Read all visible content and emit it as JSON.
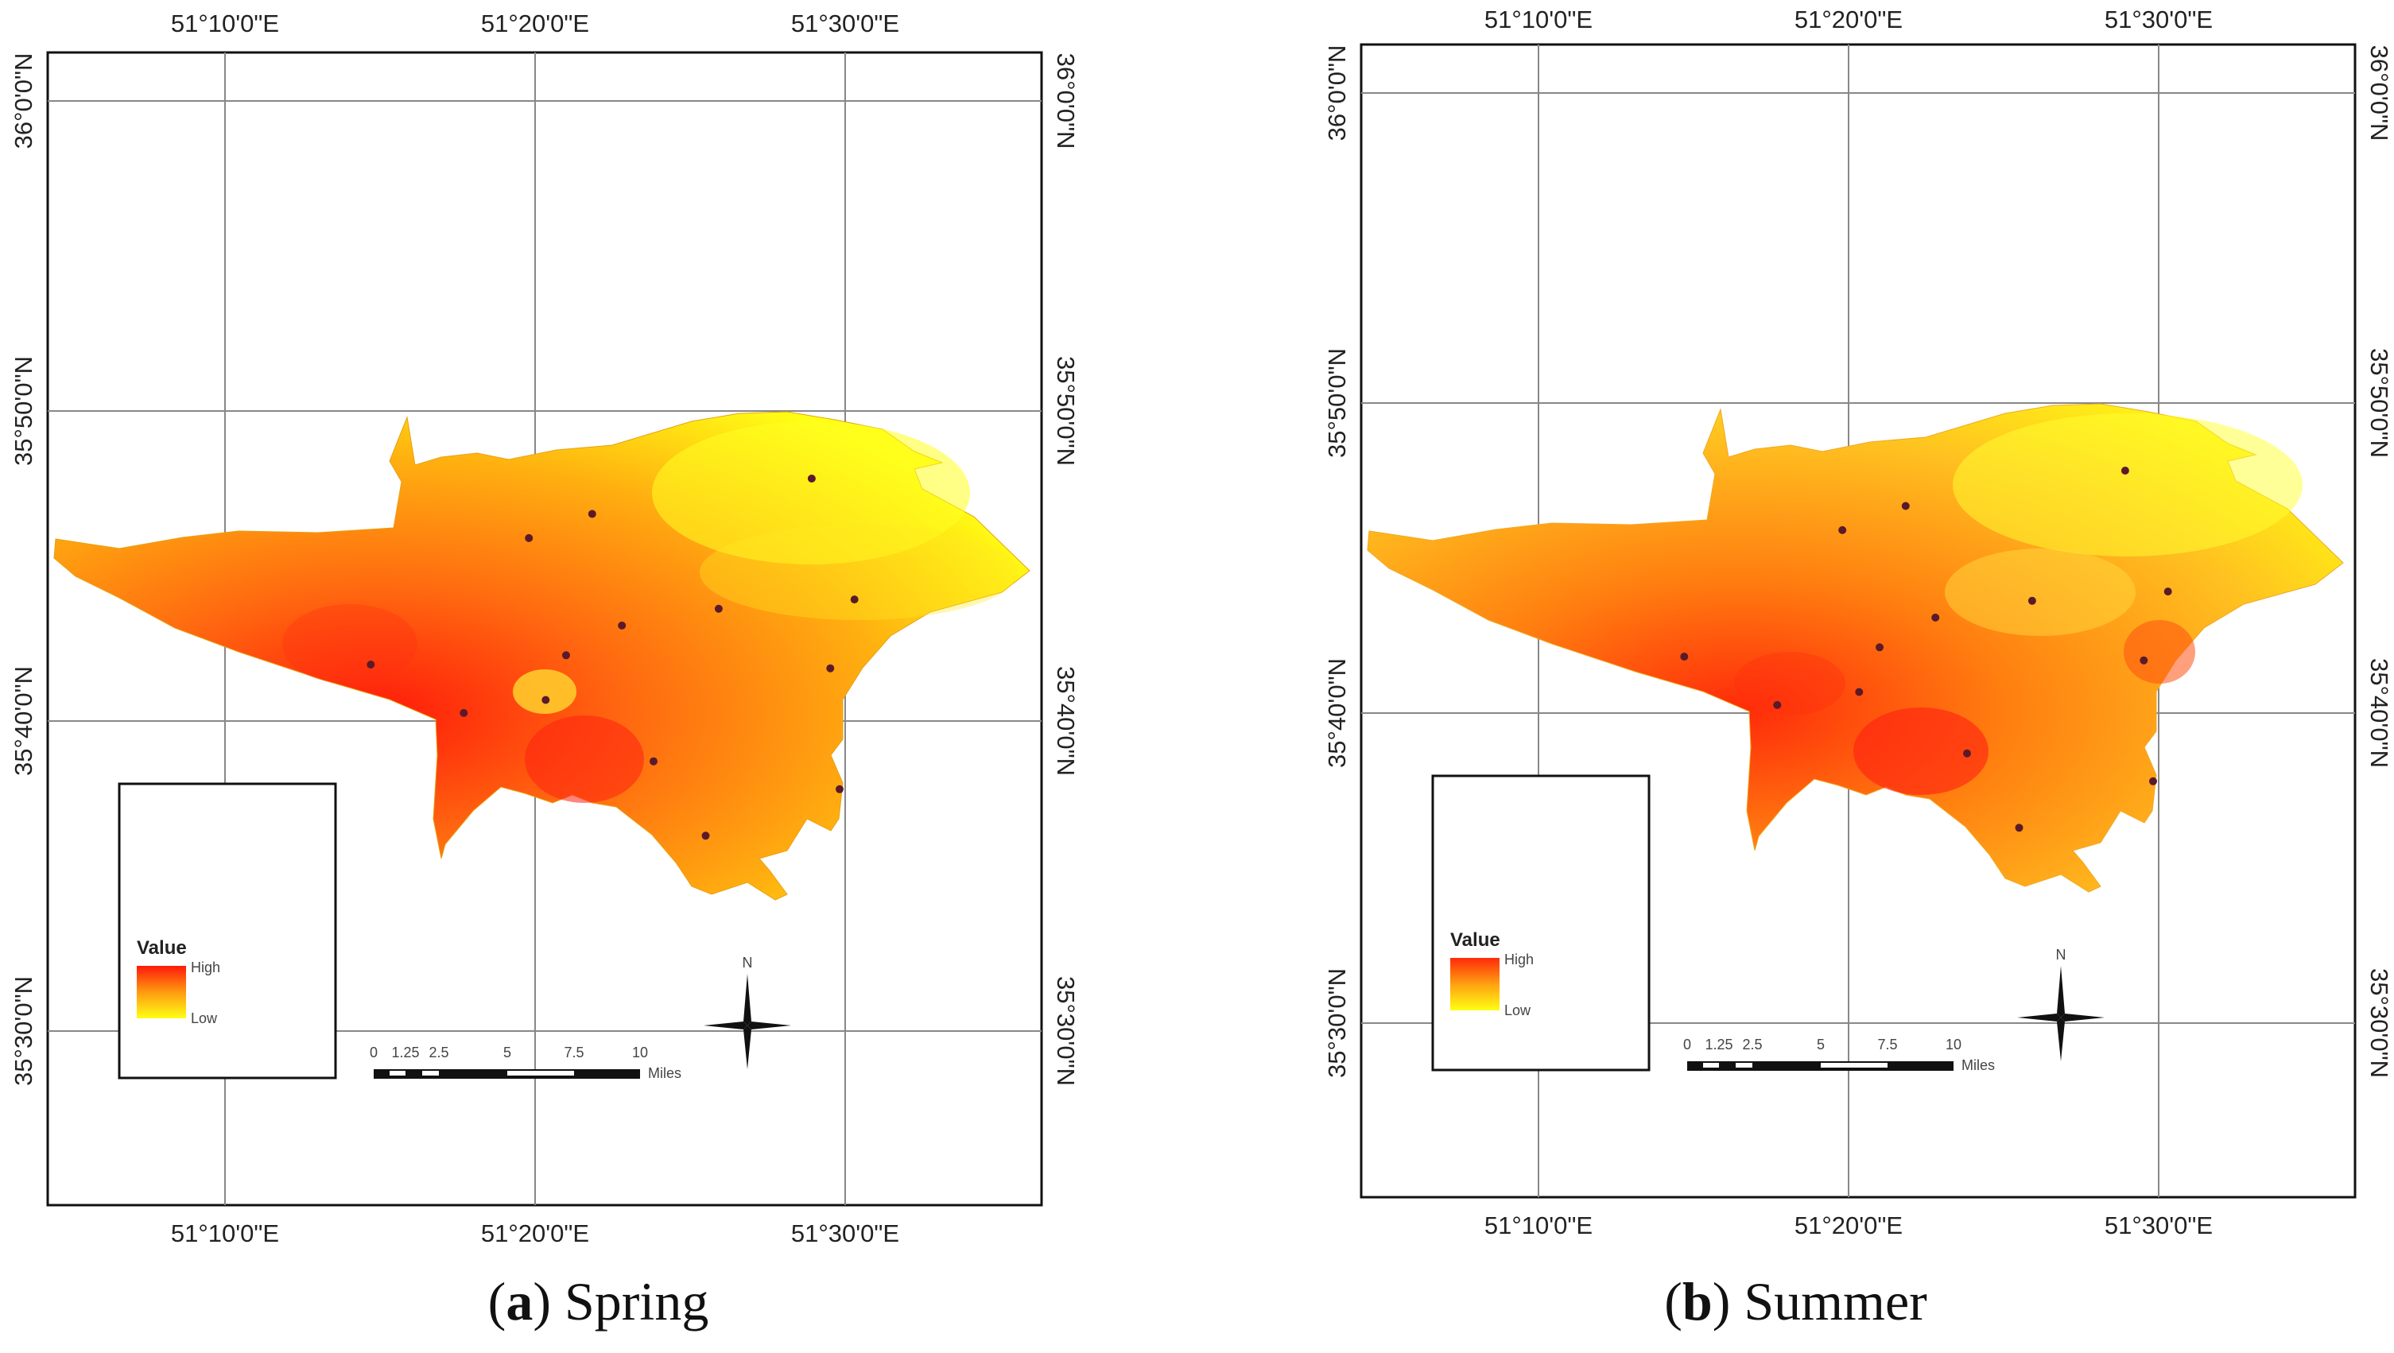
{
  "panels": [
    {
      "id": "spring",
      "caption_letter": "a",
      "caption_text": "Spring",
      "gradient": [
        {
          "offset": "0",
          "color": "#ff1a0a"
        },
        {
          "offset": "0.35",
          "color": "#ff6a10"
        },
        {
          "offset": "0.7",
          "color": "#ffb010"
        },
        {
          "offset": "1",
          "color": "#ffff14"
        }
      ],
      "stations": [
        {
          "lon": 51.482,
          "lat": 35.797
        },
        {
          "lon": 51.364,
          "lat": 35.778
        },
        {
          "lon": 51.33,
          "lat": 35.765
        },
        {
          "lon": 51.505,
          "lat": 35.732
        },
        {
          "lon": 51.432,
          "lat": 35.727
        },
        {
          "lon": 51.38,
          "lat": 35.718
        },
        {
          "lon": 51.35,
          "lat": 35.702
        },
        {
          "lon": 51.492,
          "lat": 35.695
        },
        {
          "lon": 51.245,
          "lat": 35.697
        },
        {
          "lon": 51.339,
          "lat": 35.678
        },
        {
          "lon": 51.295,
          "lat": 35.671
        },
        {
          "lon": 51.397,
          "lat": 35.645
        },
        {
          "lon": 51.497,
          "lat": 35.63
        },
        {
          "lon": 51.425,
          "lat": 35.605
        }
      ]
    },
    {
      "id": "summer",
      "caption_letter": "b",
      "caption_text": "Summer",
      "gradient": [
        {
          "offset": "0",
          "color": "#ff2a0a"
        },
        {
          "offset": "0.35",
          "color": "#ff8010"
        },
        {
          "offset": "0.7",
          "color": "#ffc020"
        },
        {
          "offset": "1",
          "color": "#ffff14"
        }
      ],
      "stations": [
        {
          "lon": 51.482,
          "lat": 35.797
        },
        {
          "lon": 51.364,
          "lat": 35.778
        },
        {
          "lon": 51.33,
          "lat": 35.765
        },
        {
          "lon": 51.505,
          "lat": 35.732
        },
        {
          "lon": 51.432,
          "lat": 35.727
        },
        {
          "lon": 51.38,
          "lat": 35.718
        },
        {
          "lon": 51.35,
          "lat": 35.702
        },
        {
          "lon": 51.492,
          "lat": 35.695
        },
        {
          "lon": 51.245,
          "lat": 35.697
        },
        {
          "lon": 51.339,
          "lat": 35.678
        },
        {
          "lon": 51.295,
          "lat": 35.671
        },
        {
          "lon": 51.397,
          "lat": 35.645
        },
        {
          "lon": 51.497,
          "lat": 35.63
        },
        {
          "lon": 51.425,
          "lat": 35.605
        }
      ]
    }
  ],
  "axes": {
    "lon_labels": [
      "51°10'0\"E",
      "51°20'0\"E",
      "51°30'0\"E"
    ],
    "lat_labels": [
      "36°0'0\"N",
      "35°50'0\"N",
      "35°40'0\"N",
      "35°30'0\"N"
    ]
  },
  "legend": {
    "title": "Value",
    "high": "High",
    "low": "Low"
  },
  "scale_bar": {
    "ticks": [
      "0",
      "1.25",
      "2.5",
      "5",
      "7.5",
      "10"
    ],
    "unit": "Miles"
  },
  "north_arrow": {
    "label": "N"
  }
}
